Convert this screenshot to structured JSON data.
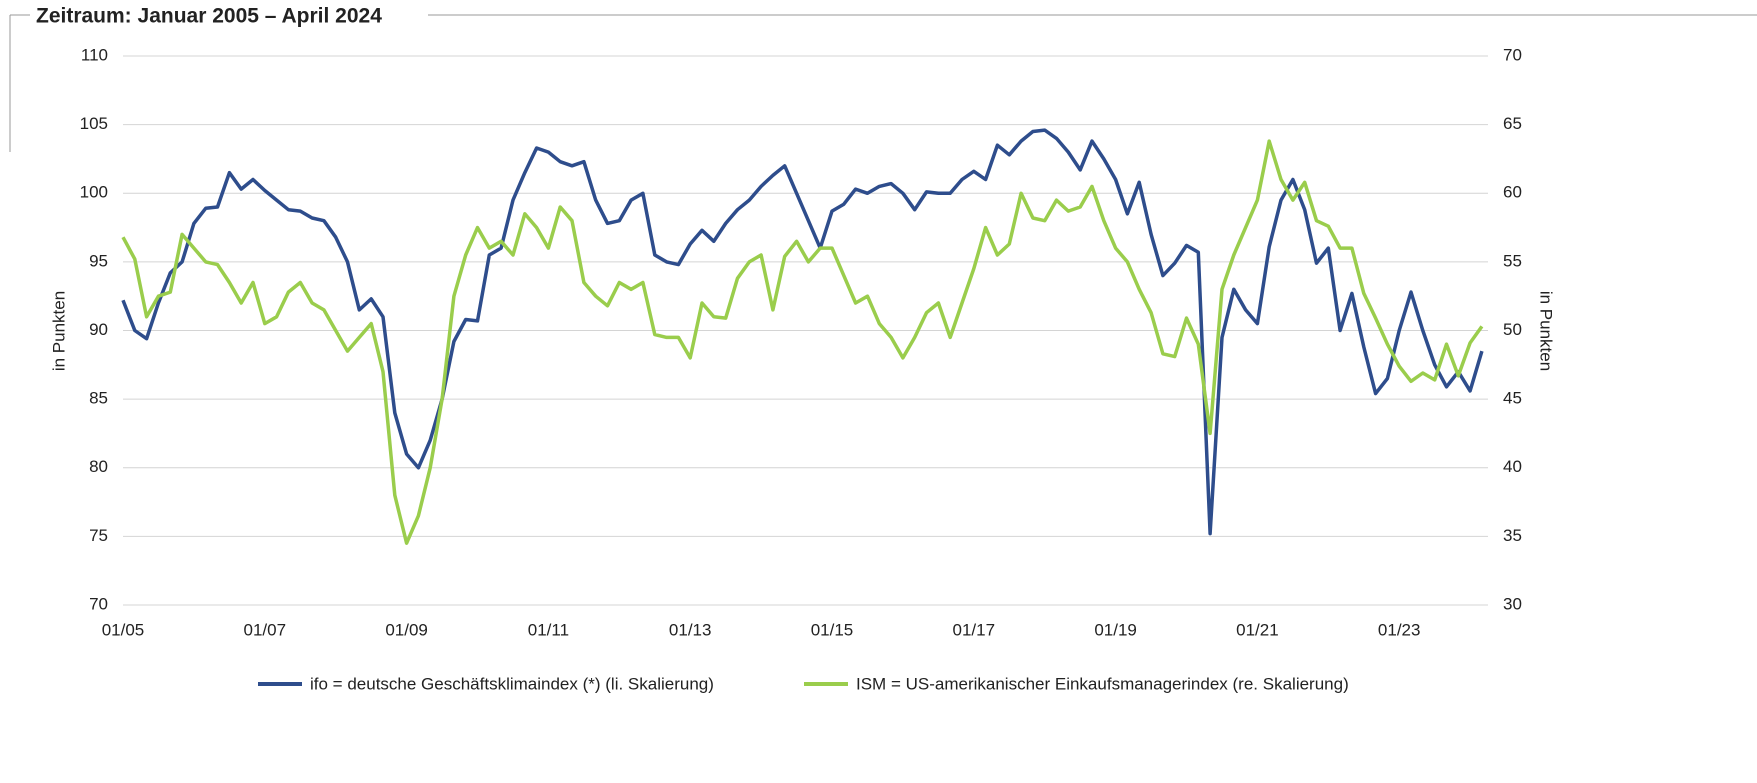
{
  "chart_data": {
    "type": "line",
    "title": "Zeitraum: Januar 2005 – April 2024",
    "y_label": "in Punkten",
    "y2_label": "in Punkten",
    "x": [
      "01/05",
      "03/05",
      "05/05",
      "07/05",
      "09/05",
      "11/05",
      "01/06",
      "03/06",
      "05/06",
      "07/06",
      "09/06",
      "11/06",
      "01/07",
      "03/07",
      "05/07",
      "07/07",
      "09/07",
      "11/07",
      "01/08",
      "03/08",
      "05/08",
      "07/08",
      "09/08",
      "11/08",
      "01/09",
      "03/09",
      "05/09",
      "07/09",
      "09/09",
      "11/09",
      "01/10",
      "03/10",
      "05/10",
      "07/10",
      "09/10",
      "11/10",
      "01/11",
      "03/11",
      "05/11",
      "07/11",
      "09/11",
      "11/11",
      "01/12",
      "03/12",
      "05/12",
      "07/12",
      "09/12",
      "11/12",
      "01/13",
      "03/13",
      "05/13",
      "07/13",
      "09/13",
      "11/13",
      "01/14",
      "03/14",
      "05/14",
      "07/14",
      "09/14",
      "11/14",
      "01/15",
      "03/15",
      "05/15",
      "07/15",
      "09/15",
      "11/15",
      "01/16",
      "03/16",
      "05/16",
      "07/16",
      "09/16",
      "11/16",
      "01/17",
      "03/17",
      "05/17",
      "07/17",
      "09/17",
      "11/17",
      "01/18",
      "03/18",
      "05/18",
      "07/18",
      "09/18",
      "11/18",
      "01/19",
      "03/19",
      "05/19",
      "07/19",
      "09/19",
      "11/19",
      "01/20",
      "03/20",
      "05/20",
      "07/20",
      "09/20",
      "11/20",
      "01/21",
      "03/21",
      "05/21",
      "07/21",
      "09/21",
      "11/21",
      "01/22",
      "03/22",
      "05/22",
      "07/22",
      "09/22",
      "11/22",
      "01/23",
      "03/23",
      "05/23",
      "07/23",
      "09/23",
      "11/23",
      "01/24",
      "03/24"
    ],
    "xticks": [
      "01/05",
      "01/07",
      "01/09",
      "01/11",
      "01/13",
      "01/15",
      "01/17",
      "01/19",
      "01/21",
      "01/23"
    ],
    "ylim": [
      70,
      110
    ],
    "yticks": [
      70,
      75,
      80,
      85,
      90,
      95,
      100,
      105,
      110
    ],
    "y2lim": [
      30,
      70
    ],
    "y2ticks": [
      30,
      35,
      40,
      45,
      50,
      55,
      60,
      65,
      70
    ],
    "grid": true,
    "legend": "bottom",
    "series": [
      {
        "name": "ifo = deutsche Geschäftsklimaindex (*) (li. Skalierung)",
        "color": "#2e4d8c",
        "values": [
          92.2,
          90.0,
          89.4,
          92.0,
          94.2,
          95.0,
          97.8,
          98.9,
          99.0,
          101.5,
          100.3,
          101.0,
          100.2,
          99.5,
          98.8,
          98.7,
          98.2,
          98.0,
          96.8,
          95.0,
          91.5,
          92.3,
          91.0,
          84.0,
          81.0,
          80.0,
          82.0,
          85.0,
          89.2,
          90.8,
          90.7,
          95.5,
          96.0,
          99.5,
          101.5,
          103.3,
          103.0,
          102.3,
          102.0,
          102.3,
          99.5,
          97.8,
          98.0,
          99.5,
          100.0,
          95.5,
          95.0,
          94.8,
          96.3,
          97.3,
          96.5,
          97.8,
          98.8,
          99.5,
          100.5,
          101.3,
          102.0,
          100.0,
          98.0,
          96.0,
          98.7,
          99.2,
          100.3,
          100.0,
          100.5,
          100.7,
          100.0,
          98.8,
          100.1,
          100.0,
          100.0,
          101.0,
          101.6,
          101.0,
          103.5,
          102.8,
          103.8,
          104.5,
          104.6,
          104.0,
          103.0,
          101.7,
          103.8,
          102.5,
          101.0,
          98.5,
          100.8,
          97.0,
          94.0,
          94.9,
          96.2,
          95.7,
          75.2,
          89.5,
          93.0,
          91.5,
          90.5,
          96.1,
          99.5,
          101.0,
          98.8,
          94.9,
          96.0,
          90.0,
          92.7,
          88.8,
          85.4,
          86.5,
          90.0,
          92.8,
          90.0,
          87.5,
          85.9,
          87.0,
          85.6,
          88.5
        ]
      },
      {
        "name": "ISM = US-amerikanischer Einkaufsmanagerindex (re. Skalierung)",
        "color": "#9acd4c",
        "axis": "y2",
        "values": [
          56.8,
          55.2,
          51.0,
          52.5,
          52.8,
          57.0,
          56.0,
          55.0,
          54.8,
          53.5,
          52.0,
          53.5,
          50.5,
          51.0,
          52.8,
          53.5,
          52.0,
          51.5,
          50.0,
          48.5,
          49.5,
          50.5,
          47.0,
          38.0,
          34.5,
          36.5,
          40.0,
          45.0,
          52.5,
          55.5,
          57.5,
          56.0,
          56.5,
          55.5,
          58.5,
          57.5,
          56.0,
          59.0,
          58.0,
          53.5,
          52.5,
          51.8,
          53.5,
          53.0,
          53.5,
          49.7,
          49.5,
          49.5,
          48.0,
          52.0,
          51.0,
          50.9,
          53.8,
          55.0,
          55.5,
          51.5,
          55.4,
          56.5,
          55.0,
          56.0,
          56.0,
          54.0,
          52.0,
          52.5,
          50.5,
          49.5,
          48.0,
          49.5,
          51.3,
          52.0,
          49.5,
          52.0,
          54.5,
          57.5,
          55.5,
          56.3,
          60.0,
          58.2,
          58.0,
          59.5,
          58.7,
          59.0,
          60.5,
          58.0,
          56.0,
          55.0,
          53.0,
          51.3,
          48.3,
          48.1,
          50.9,
          49.0,
          42.5,
          53.0,
          55.5,
          57.5,
          59.5,
          63.8,
          61.0,
          59.5,
          60.8,
          58.0,
          57.6,
          56.0,
          56.0,
          52.7,
          50.9,
          49.0,
          47.4,
          46.3,
          46.9,
          46.4,
          49.0,
          46.7,
          49.1,
          50.3
        ]
      }
    ]
  }
}
